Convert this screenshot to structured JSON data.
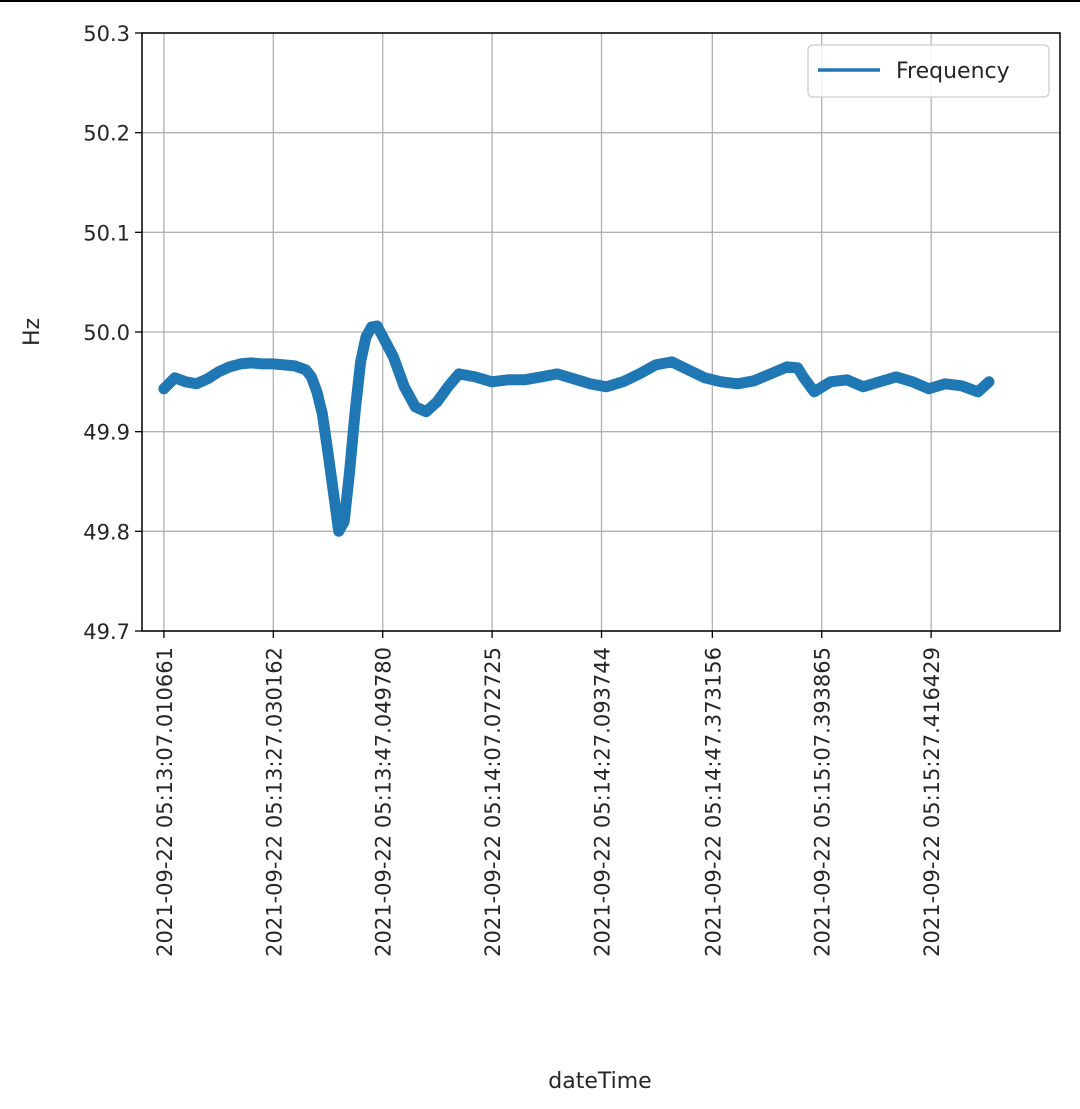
{
  "chart_data": {
    "type": "line",
    "title": "",
    "xlabel": "dateTime",
    "ylabel": "Hz",
    "ylim": [
      49.7,
      50.3
    ],
    "y_ticks": [
      "50.3",
      "50.2",
      "50.1",
      "50.0",
      "49.9",
      "49.8",
      "49.7"
    ],
    "x_ticks": [
      "2021-09-22 05:13:07.010661",
      "2021-09-22 05:13:27.030162",
      "2021-09-22 05:13:47.049780",
      "2021-09-22 05:14:07.072725",
      "2021-09-22 05:14:27.093744",
      "2021-09-22 05:14:47.373156",
      "2021-09-22 05:15:07.393865",
      "2021-09-22 05:15:27.416429"
    ],
    "xlim": [
      "2021-09-22 05:13:03",
      "2021-09-22 05:15:51"
    ],
    "grid": true,
    "legend": {
      "placement": "top-right",
      "entries": [
        "Frequency"
      ]
    },
    "line_color": "#1f77b4",
    "series": [
      {
        "name": "Frequency",
        "x": [
          "2021-09-22 05:13:07",
          "2021-09-22 05:13:09",
          "2021-09-22 05:13:11",
          "2021-09-22 05:13:13",
          "2021-09-22 05:13:15",
          "2021-09-22 05:13:17",
          "2021-09-22 05:13:19",
          "2021-09-22 05:13:21",
          "2021-09-22 05:13:23",
          "2021-09-22 05:13:25",
          "2021-09-22 05:13:27",
          "2021-09-22 05:13:29",
          "2021-09-22 05:13:31",
          "2021-09-22 05:13:33",
          "2021-09-22 05:13:34",
          "2021-09-22 05:13:35",
          "2021-09-22 05:13:36",
          "2021-09-22 05:13:37",
          "2021-09-22 05:13:38",
          "2021-09-22 05:13:39",
          "2021-09-22 05:13:40",
          "2021-09-22 05:13:41",
          "2021-09-22 05:13:42",
          "2021-09-22 05:13:43",
          "2021-09-22 05:13:44",
          "2021-09-22 05:13:45",
          "2021-09-22 05:13:46",
          "2021-09-22 05:13:47",
          "2021-09-22 05:13:49",
          "2021-09-22 05:13:51",
          "2021-09-22 05:13:53",
          "2021-09-22 05:13:55",
          "2021-09-22 05:13:57",
          "2021-09-22 05:13:59",
          "2021-09-22 05:14:01",
          "2021-09-22 05:14:04",
          "2021-09-22 05:14:07",
          "2021-09-22 05:14:10",
          "2021-09-22 05:14:13",
          "2021-09-22 05:14:16",
          "2021-09-22 05:14:19",
          "2021-09-22 05:14:22",
          "2021-09-22 05:14:25",
          "2021-09-22 05:14:28",
          "2021-09-22 05:14:31",
          "2021-09-22 05:14:34",
          "2021-09-22 05:14:37",
          "2021-09-22 05:14:40",
          "2021-09-22 05:14:43",
          "2021-09-22 05:14:46",
          "2021-09-22 05:14:49",
          "2021-09-22 05:14:52",
          "2021-09-22 05:14:55",
          "2021-09-22 05:14:58",
          "2021-09-22 05:15:01",
          "2021-09-22 05:15:03",
          "2021-09-22 05:15:04",
          "2021-09-22 05:15:06",
          "2021-09-22 05:15:09",
          "2021-09-22 05:15:12",
          "2021-09-22 05:15:15",
          "2021-09-22 05:15:18",
          "2021-09-22 05:15:21",
          "2021-09-22 05:15:24",
          "2021-09-22 05:15:27",
          "2021-09-22 05:15:30",
          "2021-09-22 05:15:33",
          "2021-09-22 05:15:36",
          "2021-09-22 05:15:38"
        ],
        "y": [
          49.943,
          49.954,
          49.95,
          49.948,
          49.953,
          49.96,
          49.965,
          49.968,
          49.969,
          49.968,
          49.968,
          49.967,
          49.966,
          49.962,
          49.955,
          49.94,
          49.918,
          49.88,
          49.84,
          49.8,
          49.81,
          49.86,
          49.92,
          49.97,
          49.995,
          50.005,
          50.006,
          49.996,
          49.975,
          49.945,
          49.925,
          49.92,
          49.93,
          49.945,
          49.958,
          49.955,
          49.95,
          49.952,
          49.952,
          49.955,
          49.958,
          49.953,
          49.948,
          49.945,
          49.95,
          49.958,
          49.967,
          49.97,
          49.962,
          49.954,
          49.95,
          49.948,
          49.951,
          49.958,
          49.965,
          49.964,
          49.955,
          49.94,
          49.95,
          49.952,
          49.945,
          49.95,
          49.955,
          49.95,
          49.943,
          49.948,
          49.946,
          49.94,
          49.95
        ]
      }
    ]
  }
}
